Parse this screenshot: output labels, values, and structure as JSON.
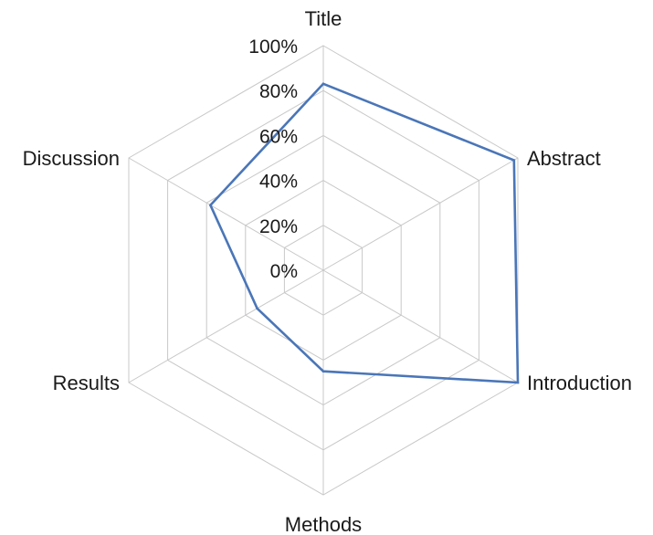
{
  "chart_data": {
    "type": "radar",
    "title": "",
    "categories": [
      "Title",
      "Abstract",
      "Introduction",
      "Methods",
      "Results",
      "Discussion"
    ],
    "tick_labels": [
      "0%",
      "20%",
      "40%",
      "60%",
      "80%",
      "100%"
    ],
    "range": [
      0,
      100
    ],
    "unit": "%",
    "grid": true,
    "legend": "none",
    "series": [
      {
        "values": [
          83,
          98,
          100,
          45,
          34,
          58
        ],
        "color": "#4a76b8"
      }
    ],
    "grid_color": "#c8c8c8"
  }
}
